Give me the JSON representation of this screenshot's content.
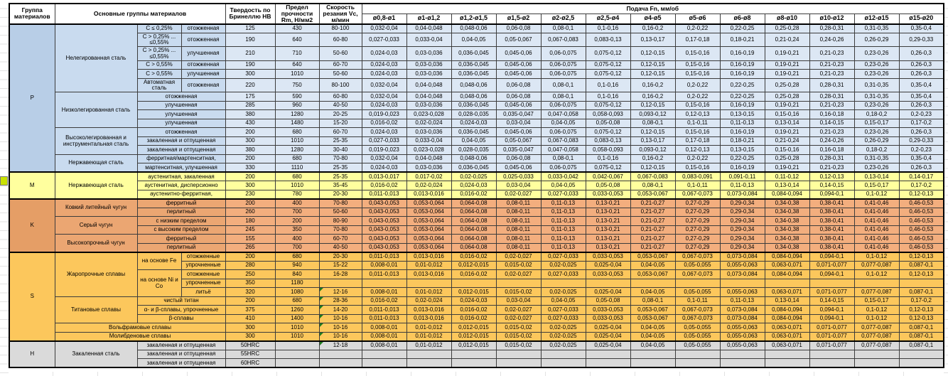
{
  "header": {
    "group": "Группа материалов",
    "main": "Основные группы материалов",
    "hardness": "Твердость по Бринеллю HB",
    "strength": "Предел прочности Rm, Н/мм2",
    "speed": "Скорость резания Vc, м/мин",
    "feed": "Подача Fn, мм/об",
    "feed_cols": [
      "ø0,8-ø1",
      "ø1-ø1,2",
      "ø1,2-ø1,5",
      "ø1,5-ø2",
      "ø2-ø2,5",
      "ø2,5-ø4",
      "ø4-ø5",
      "ø5-ø6",
      "ø6-ø8",
      "ø8-ø10",
      "ø10-ø12",
      "ø12-ø15",
      "ø15-ø20"
    ]
  },
  "colors": {
    "p_rows": "#dce7f4",
    "p_group": "#b8cee7",
    "m_rows": "#ffff9e",
    "k_rows": "#f3ae7e",
    "k_group": "#e59e66",
    "s_rows": "#fcc75c",
    "h_rows": "#dadada",
    "comment_flag": "#1e7a1e",
    "left_marker": "#c9e100",
    "border": "#000000"
  },
  "feed_presets": {
    "A": [
      "0,032-0,04",
      "0,04-0,048",
      "0,048-0,06",
      "0,06-0,08",
      "0,08-0,1",
      "0,1-0,16",
      "0,16-0,2",
      "0,2-0,22",
      "0,22-0,25",
      "0,25-0,28",
      "0,28-0,31",
      "0,31-0,35",
      "0,35-0,4"
    ],
    "B": [
      "0,027-0,033",
      "0,033-0,04",
      "0,04-0,05",
      "0,05-0,067",
      "0,067-0,083",
      "0,083-0,13",
      "0,13-0,17",
      "0,17-0,18",
      "0,18-0,21",
      "0,21-0,24",
      "0,24-0,26",
      "0,26-0,29",
      "0,29-0,33"
    ],
    "C": [
      "0,024-0,03",
      "0,03-0,036",
      "0,036-0,045",
      "0,045-0,06",
      "0,06-0,075",
      "0,075-0,12",
      "0,12-0,15",
      "0,15-0,16",
      "0,16-0,19",
      "0,19-0,21",
      "0,21-0,23",
      "0,23-0,26",
      "0,26-0,3"
    ],
    "D": [
      "0,019-0,023",
      "0,023-0,028",
      "0,028-0,035",
      "0,035-0,047",
      "0,047-0,058",
      "0,058-0,093",
      "0,093-0,12",
      "0,12-0,13",
      "0,13-0,15",
      "0,15-0,16",
      "0,16-0,18",
      "0,18-0,2",
      "0,2-0,23"
    ],
    "E": [
      "0,016-0,02",
      "0,02-0,024",
      "0,024-0,03",
      "0,03-0,04",
      "0,04-0,05",
      "0,05-0,08",
      "0,08-0,1",
      "0,1-0,11",
      "0,11-0,13",
      "0,13-0,14",
      "0,14-0,15",
      "0,15-0,17",
      "0,17-0,2"
    ],
    "M1": [
      "0,013-0,017",
      "0,017-0,02",
      "0,02-0,025",
      "0,025-0,033",
      "0,033-0,042",
      "0,042-0,067",
      "0,067-0,083",
      "0,083-0,091",
      "0,091-0,11",
      "0,11-0,12",
      "0,12-0,13",
      "0,13-0,14",
      "0,14-0,17"
    ],
    "S3": [
      "0,011-0,013",
      "0,013-0,016",
      "0,016-0,02",
      "0,02-0,027",
      "0,027-0,033",
      "0,033-0,053",
      "0,053-0,067",
      "0,067-0,073",
      "0,073-0,084",
      "0,084-0,094",
      "0,094-0,1",
      "0,1-0,12",
      "0,12-0,13"
    ],
    "S4": [
      "0,008-0,01",
      "0,01-0,012",
      "0,012-0,015",
      "0,015-0,02",
      "0,02-0,025",
      "0,025-0,04",
      "0,04-0,05",
      "0,05-0,055",
      "0,055-0,063",
      "0,063-0,071",
      "0,071-0,077",
      "0,077-0,087",
      "0,087-0,1"
    ],
    "K": [
      "0,043-0,053",
      "0,053-0,064",
      "0,064-0,08",
      "0,08-0,11",
      "0,11-0,13",
      "0,13-0,21",
      "0,21-0,27",
      "0,27-0,29",
      "0,29-0,34",
      "0,34-0,38",
      "0,38-0,41",
      "0,41-0,46",
      "0,46-0,53"
    ],
    "X": [
      "",
      "",
      "",
      "",
      "",
      "",
      "",
      "",
      "",
      "",
      "",
      "",
      ""
    ]
  },
  "rows": [
    {
      "sep": 1,
      "group": [
        "P",
        15
      ],
      "material": [
        "Нелегированная сталь",
        6,
        1
      ],
      "sub": [
        "C ≤ 0,25%",
        1
      ],
      "state": "отожженная",
      "hb": "125",
      "rm": "430",
      "vc": "80-100",
      "feeds": "A"
    },
    {
      "tall": 1,
      "sub": [
        "C > 0,25% ... ≤0,55%",
        1
      ],
      "state": "отожженная",
      "hb": "190",
      "rm": "640",
      "vc": "60-80",
      "feeds": "B"
    },
    {
      "tall": 1,
      "sub": [
        "C > 0,25% ... ≤0,55%",
        1
      ],
      "state": "улучшенная",
      "hb": "210",
      "rm": "710",
      "vc": "50-60",
      "feeds": "C"
    },
    {
      "sub": [
        "C > 0,55%",
        1
      ],
      "state": "отожженная",
      "hb": "190",
      "rm": "640",
      "vc": "60-70",
      "feeds": "C"
    },
    {
      "sub": [
        "C > 0,55%",
        1
      ],
      "state": "улучшенная",
      "hb": "300",
      "rm": "1010",
      "vc": "50-60",
      "feeds": "C"
    },
    {
      "tall": 1,
      "sub": [
        "Автоматная сталь",
        1
      ],
      "state": "отожженная",
      "hb": "220",
      "rm": "750",
      "vc": "80-100",
      "feeds": "A"
    },
    {
      "material": [
        "Низколегированная сталь",
        4,
        1
      ],
      "merged": "отожженная",
      "hb": "175",
      "rm": "590",
      "vc": "60-80",
      "feeds": "A"
    },
    {
      "merged": "улучшенная",
      "hb": "285",
      "rm": "960",
      "vc": "40-50",
      "feeds": "C"
    },
    {
      "merged": "улучшенная",
      "hb": "380",
      "rm": "1280",
      "vc": "20-25",
      "feeds": "D"
    },
    {
      "merged": "улучшенная",
      "hb": "430",
      "rm": "1480",
      "vc": "15-20",
      "feeds": "E"
    },
    {
      "material": [
        "Высоколегированная и инструментальная сталь",
        3,
        1
      ],
      "merged": "отожженная",
      "hb": "200",
      "rm": "680",
      "vc": "60-70",
      "feeds": "C"
    },
    {
      "merged": "закаленная и отпущенная",
      "hb": "300",
      "rm": "1010",
      "vc": "25-35",
      "feeds": "B"
    },
    {
      "merged": "закаленная и отпущенная",
      "hb": "380",
      "rm": "1280",
      "vc": "30-40",
      "feeds": "D"
    },
    {
      "material": [
        "Нержавеющая сталь",
        2,
        1
      ],
      "merged": "ферритная/мартенситная,",
      "hb": "200",
      "rm": "680",
      "vc": "70-80",
      "feeds": "A"
    },
    {
      "merged": "мартенситная, улучшенная",
      "hb": "330",
      "rm": "1110",
      "vc": "25-35",
      "feeds": "C"
    },
    {
      "sep": 1,
      "group": [
        "M",
        3
      ],
      "material": [
        "Нержавеющая сталь",
        3,
        1
      ],
      "merged": "аустенитная, закаленная",
      "hb": "200",
      "rm": "680",
      "vc": "25-35",
      "feeds": "M1"
    },
    {
      "merged": "аустенитная, дисперсионно",
      "hb": "300",
      "rm": "1010",
      "vc": "35-45",
      "feeds": "E"
    },
    {
      "merged": "аустенитно-ферритная,",
      "hb": "230",
      "rm": "780",
      "vc": "20-30",
      "feeds": "S3"
    },
    {
      "sep": 1,
      "group": [
        "K",
        6
      ],
      "material": [
        "Ковкий литейный чугун",
        2,
        1
      ],
      "merged": "ферритный",
      "hb": "200",
      "rm": "400",
      "vc": "70-80",
      "feeds": "K"
    },
    {
      "merged": "перлитный",
      "hb": "260",
      "rm": "700",
      "vc": "50-60",
      "feeds": "K"
    },
    {
      "material": [
        "Серый чугун",
        2,
        1
      ],
      "merged": "с низким пределом",
      "hb": "180",
      "rm": "200",
      "vc": "80-90",
      "feeds": "K"
    },
    {
      "merged": "с высоким пределом",
      "hb": "245",
      "rm": "350",
      "vc": "70-80",
      "feeds": "K"
    },
    {
      "material": [
        "Высокопрочный чугун",
        2,
        1
      ],
      "merged": "ферритный",
      "hb": "155",
      "rm": "400",
      "vc": "60-70",
      "feeds": "K"
    },
    {
      "merged": "перлитный",
      "hb": "265",
      "rm": "700",
      "vc": "40-50",
      "feeds": "K"
    },
    {
      "sep": 1,
      "group": [
        "S",
        10
      ],
      "material": [
        "Жаропрочные сплавы",
        5,
        1
      ],
      "sub": [
        "на основе Fe",
        2
      ],
      "state": "отожженные",
      "hb": "200",
      "rm": "680",
      "vc": "20-30",
      "feeds": "S3"
    },
    {
      "state": "упрочненные",
      "hb": "280",
      "rm": "940",
      "vc": "15-22",
      "feeds": "S4"
    },
    {
      "sub": [
        "на основе Ni и Co",
        3
      ],
      "state": "отожженные",
      "hb": "250",
      "rm": "840",
      "vc": "16-28",
      "feeds": "S3"
    },
    {
      "state": "упрочненные",
      "hb": "350",
      "rm": "1180",
      "vc": "",
      "feeds": "X"
    },
    {
      "state": "литьё",
      "hb": "320",
      "rm": "1080",
      "vc": "12-16",
      "flag": 1,
      "feeds": "S4"
    },
    {
      "material": [
        "Титановые сплавы",
        3,
        1
      ],
      "merged": "чистый титан",
      "hb": "200",
      "rm": "680",
      "vc": "28-36",
      "flag": 1,
      "feeds": "E"
    },
    {
      "merged": "α- и β-сплавы, упрочненные",
      "hb": "375",
      "rm": "1260",
      "vc": "14-20",
      "flag": 1,
      "feeds": "S3"
    },
    {
      "merged": "β-сплавы",
      "hb": "410",
      "rm": "1400",
      "vc": "10-16",
      "flag": 1,
      "feeds": "S3"
    },
    {
      "material": [
        "Вольфрамовые сплавы",
        1,
        3
      ],
      "hb": "300",
      "rm": "1010",
      "vc": "10-16",
      "flag": 1,
      "feeds": "S4"
    },
    {
      "material": [
        "Молибденовые сплавы",
        1,
        3
      ],
      "hb": "300",
      "rm": "1010",
      "vc": "10-16",
      "flag": 1,
      "feeds": "S4"
    },
    {
      "sep": 1,
      "group": [
        "H",
        3
      ],
      "material": [
        "Закаленная сталь",
        3,
        1
      ],
      "merged": "закаленная и отпущенная",
      "hb": "50HRC",
      "rm": "",
      "vc": "12-18",
      "flag": 1,
      "feeds": "S4"
    },
    {
      "merged": "закаленная и отпущенная",
      "hb": "55HRC",
      "rm": "",
      "vc": "",
      "feeds": "X"
    },
    {
      "merged": "закаленная и отпущенная",
      "hb": "60HRC",
      "rm": "",
      "vc": "",
      "feeds": "X"
    }
  ]
}
